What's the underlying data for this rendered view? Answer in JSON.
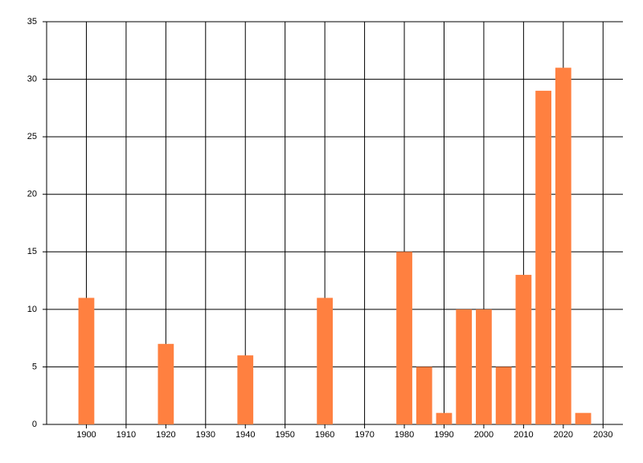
{
  "chart_data": {
    "type": "bar",
    "x": [
      1900,
      1920,
      1940,
      1960,
      1980,
      1985,
      1990,
      1995,
      2000,
      2005,
      2010,
      2015,
      2020,
      2025
    ],
    "values": [
      11,
      7,
      6,
      11,
      15,
      5,
      1,
      10,
      10,
      5,
      13,
      29,
      31,
      1
    ],
    "color": "#ff8040",
    "xlim": [
      1890,
      2035
    ],
    "xticks": [
      1900,
      1910,
      1920,
      1930,
      1940,
      1950,
      1960,
      1970,
      1980,
      1990,
      2000,
      2010,
      2020,
      2030
    ],
    "ylim": [
      0,
      35
    ],
    "yticks": [
      0,
      5,
      10,
      15,
      20,
      25,
      30,
      35
    ],
    "grid": true
  }
}
